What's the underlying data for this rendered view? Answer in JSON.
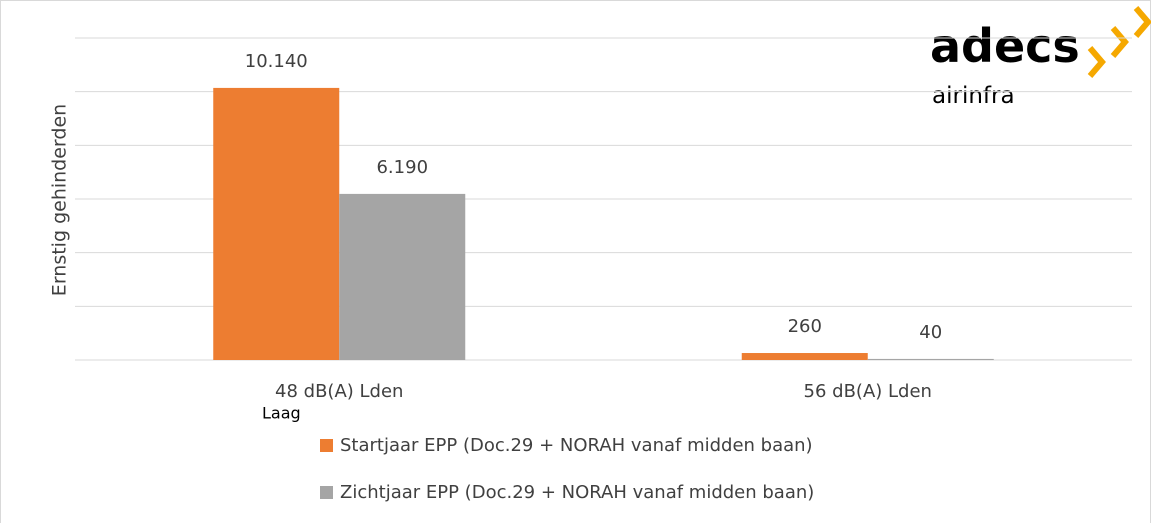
{
  "chart_data": {
    "type": "bar",
    "y_label": "Ernstig gehinderden",
    "categories": [
      "48 dB(A) Lden",
      "56 dB(A) Lden"
    ],
    "annotations": [
      "Laag"
    ],
    "series": [
      {
        "name": "Startjaar EPP (Doc.29 + NORAH vanaf midden baan)",
        "color": "#ed7d31",
        "values": [
          10140,
          260
        ],
        "value_labels": [
          "10.140",
          "260"
        ]
      },
      {
        "name": "Zichtjaar EPP (Doc.29 + NORAH vanaf midden baan)",
        "color": "#a5a5a5",
        "values": [
          6190,
          40
        ],
        "value_labels": [
          "6.190",
          "40"
        ]
      }
    ],
    "ylim": [
      0,
      12000
    ],
    "yticks": [
      0,
      2000,
      4000,
      6000,
      8000,
      10000,
      12000
    ],
    "grid": true
  },
  "logo": {
    "name": "adecs",
    "sub": "airinfra"
  }
}
